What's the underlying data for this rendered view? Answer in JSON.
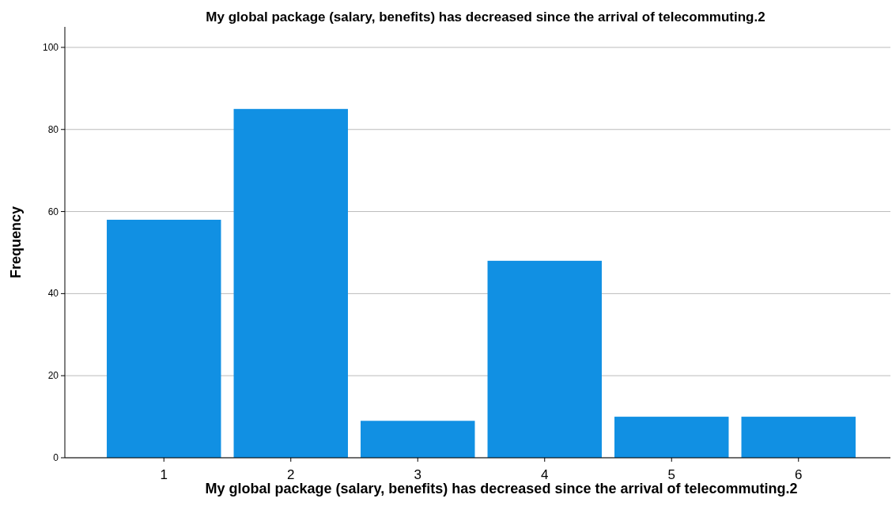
{
  "chart_data": {
    "type": "bar",
    "title": "My global package (salary, benefits) has decreased since the arrival of telecommuting.2",
    "xlabel": "My global package (salary, benefits) has decreased since the arrival of telecommuting.2",
    "ylabel": "Frequency",
    "categories": [
      "1",
      "2",
      "3",
      "4",
      "5",
      "6"
    ],
    "values": [
      58,
      85,
      9,
      48,
      10,
      10
    ],
    "color": "#1190e3",
    "ylim": [
      0,
      105
    ],
    "yticks": [
      0,
      20,
      40,
      60,
      80,
      100
    ],
    "grid": "y"
  }
}
